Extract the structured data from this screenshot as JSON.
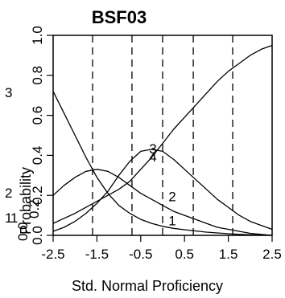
{
  "chart_data": {
    "type": "line",
    "title": "BSF03",
    "xlabel": "Std. Normal Proficiency",
    "ylabel": "Probability",
    "xlim": [
      -2.5,
      2.5
    ],
    "ylim": [
      0.0,
      1.0
    ],
    "x_ticks": [
      "-2.5",
      "-1.5",
      "-0.5",
      "0.5",
      "1.5",
      "2.5"
    ],
    "y_ticks": [
      "0.0",
      "0.2",
      "0.4",
      "0.6",
      "0.8",
      "1.0"
    ],
    "x": [
      -2.5,
      -2.25,
      -2.0,
      -1.75,
      -1.5,
      -1.25,
      -1.0,
      -0.75,
      -0.5,
      -0.25,
      0.0,
      0.25,
      0.5,
      0.75,
      1.0,
      1.25,
      1.5,
      1.75,
      2.0,
      2.25,
      2.5
    ],
    "series": [
      {
        "name": "1",
        "values": [
          0.72,
          0.61,
          0.5,
          0.39,
          0.29,
          0.21,
          0.15,
          0.11,
          0.08,
          0.06,
          0.045,
          0.035,
          0.028,
          0.022,
          0.016,
          0.012,
          0.008,
          0.005,
          0.003,
          0.002,
          0.001
        ]
      },
      {
        "name": "2",
        "values": [
          0.2,
          0.25,
          0.29,
          0.32,
          0.33,
          0.32,
          0.29,
          0.25,
          0.21,
          0.18,
          0.15,
          0.12,
          0.1,
          0.08,
          0.06,
          0.04,
          0.03,
          0.02,
          0.01,
          0.005,
          0.0
        ]
      },
      {
        "name": "3",
        "values": [
          0.02,
          0.04,
          0.07,
          0.11,
          0.16,
          0.22,
          0.3,
          0.37,
          0.42,
          0.43,
          0.42,
          0.38,
          0.33,
          0.28,
          0.23,
          0.18,
          0.14,
          0.1,
          0.07,
          0.05,
          0.03
        ]
      },
      {
        "name": "4",
        "values": [
          0.06,
          0.085,
          0.11,
          0.14,
          0.17,
          0.2,
          0.23,
          0.27,
          0.33,
          0.39,
          0.46,
          0.53,
          0.59,
          0.65,
          0.71,
          0.77,
          0.82,
          0.86,
          0.9,
          0.93,
          0.95
        ]
      }
    ],
    "thresholds": [
      -1.6,
      -0.7,
      0.0,
      0.7,
      1.6
    ],
    "curve_labels": [
      {
        "text": "1",
        "x": 0.22,
        "y": 0.05
      },
      {
        "text": "2",
        "x": 0.22,
        "y": 0.17
      },
      {
        "text": "3",
        "x": -0.22,
        "y": 0.41
      },
      {
        "text": "4",
        "x": -0.22,
        "y": 0.37
      }
    ],
    "stray_labels": [
      "3",
      "2",
      "1",
      "1",
      "0.0",
      "0.2"
    ],
    "line_color": "#000000",
    "grid": false
  }
}
